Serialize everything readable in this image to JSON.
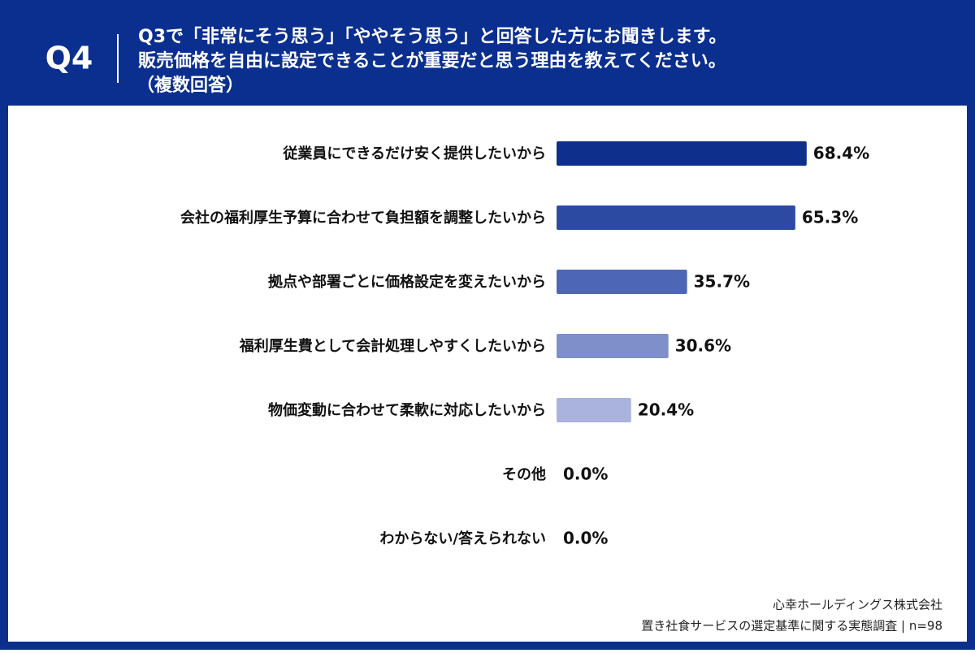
{
  "question_label": "Q4",
  "title_lines": [
    "Q3で「非常にそう思う」「ややそう思う」と回答した方にお聞きします。",
    "販売価格を自由に設定できることが重要だと思う理由を教えてください。",
    "（複数回答）"
  ],
  "chart_data": {
    "type": "bar",
    "orientation": "horizontal",
    "categories": [
      "従業員にできるだけ安く提供したいから",
      "会社の福利厚生予算に合わせて負担額を調整したいから",
      "拠点や部署ごとに価格設定を変えたいから",
      "福利厚生費として会計処理しやすくしたいから",
      "物価変動に合わせて柔軟に対応したいから",
      "その他",
      "わからない/答えられない"
    ],
    "values": [
      68.4,
      65.3,
      35.7,
      30.6,
      20.4,
      0.0,
      0.0
    ],
    "value_labels": [
      "68.4%",
      "65.3%",
      "35.7%",
      "30.6%",
      "20.4%",
      "0.0%",
      "0.0%"
    ],
    "colors": [
      "#0f2f8c",
      "#2d4aa3",
      "#4d66b5",
      "#7f8fc9",
      "#a9b3dd",
      "#a9b3dd",
      "#a9b3dd"
    ],
    "xlim": [
      0,
      100
    ]
  },
  "source_lines": [
    "心幸ホールディングス株式会社",
    "置き社食サービスの選定基準に関する実態調査 | n=98"
  ]
}
